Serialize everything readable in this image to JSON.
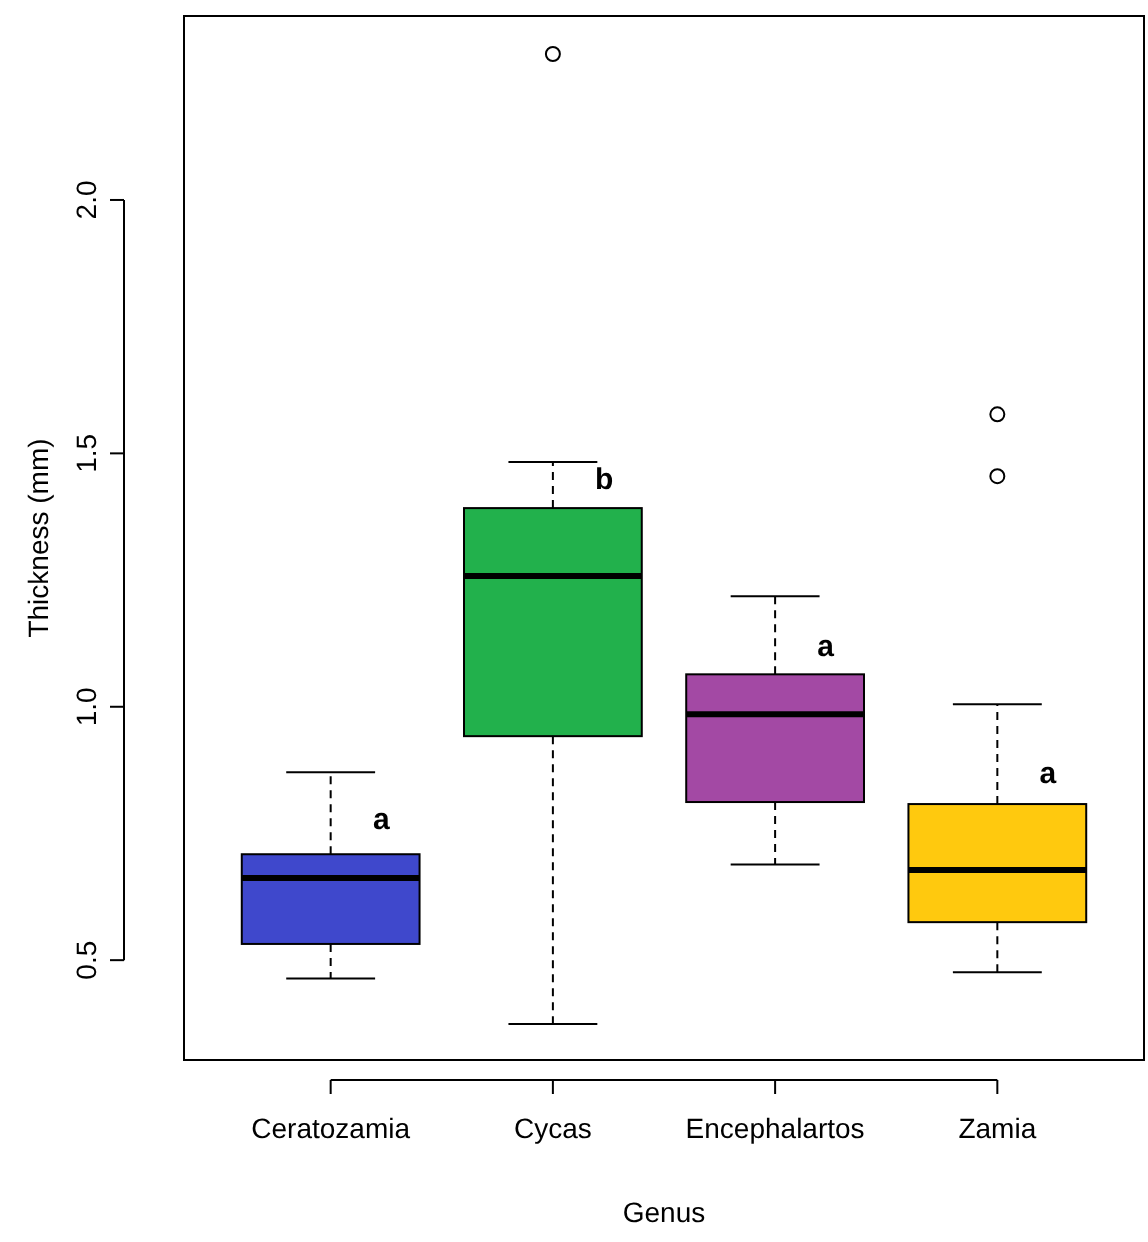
{
  "chart_data": {
    "type": "box",
    "xlabel": "Genus",
    "ylabel": "Thickness (mm)",
    "categories": [
      "Ceratozamia",
      "Cycas",
      "Encephalartos",
      "Zamia"
    ],
    "colors": [
      "#3f48cc",
      "#22b14c",
      "#a349a4",
      "#ffc90e"
    ],
    "boxes": [
      {
        "low": 0.464,
        "q1": 0.532,
        "median": 0.662,
        "q3": 0.709,
        "high": 0.871
      },
      {
        "low": 0.374,
        "q1": 0.942,
        "median": 1.258,
        "q3": 1.392,
        "high": 1.483,
        "outliers": [
          2.288
        ]
      },
      {
        "low": 0.689,
        "q1": 0.812,
        "median": 0.985,
        "q3": 1.064,
        "high": 1.218
      },
      {
        "low": 0.476,
        "q1": 0.575,
        "median": 0.678,
        "q3": 0.808,
        "high": 1.005,
        "outliers": [
          1.577,
          1.455
        ]
      }
    ],
    "ylim": [
      0.303,
      2.363
    ],
    "yticks": [
      0.5,
      {
        "value": 1,
        "label": "1.0"
      },
      1.5,
      {
        "value": 2,
        "label": "2.0"
      }
    ],
    "annotations": [
      {
        "text": "a",
        "x": "Ceratozamia",
        "y": 0.78
      },
      {
        "text": "b",
        "x": "Cycas",
        "y": 1.45
      },
      {
        "text": "a",
        "x": "Encephalartos",
        "y": 1.12
      },
      {
        "text": "a",
        "x": "Zamia",
        "y": 0.87
      }
    ]
  }
}
